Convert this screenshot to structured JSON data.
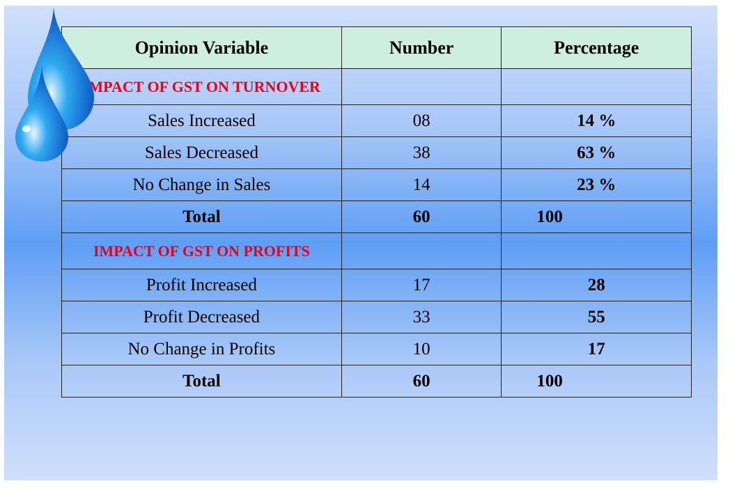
{
  "table": {
    "header": [
      "Opinion Variable",
      "Number",
      "Percentage"
    ],
    "sections": [
      {
        "title": "IMPACT OF GST ON TURNOVER",
        "rows": [
          [
            "Sales Increased",
            "08",
            "14 %"
          ],
          [
            "Sales Decreased",
            "38",
            "63 %"
          ],
          [
            "No Change in Sales",
            "14",
            "23 %"
          ]
        ],
        "total": [
          "Total",
          "60",
          "100"
        ]
      },
      {
        "title": "IMPACT OF GST ON PROFITS",
        "rows": [
          [
            "Profit Increased",
            "17",
            "28"
          ],
          [
            "Profit Decreased",
            "33",
            "55"
          ],
          [
            "No Change in Profits",
            "10",
            "17"
          ]
        ],
        "total": [
          "Total",
          "60",
          "100"
        ]
      }
    ]
  }
}
